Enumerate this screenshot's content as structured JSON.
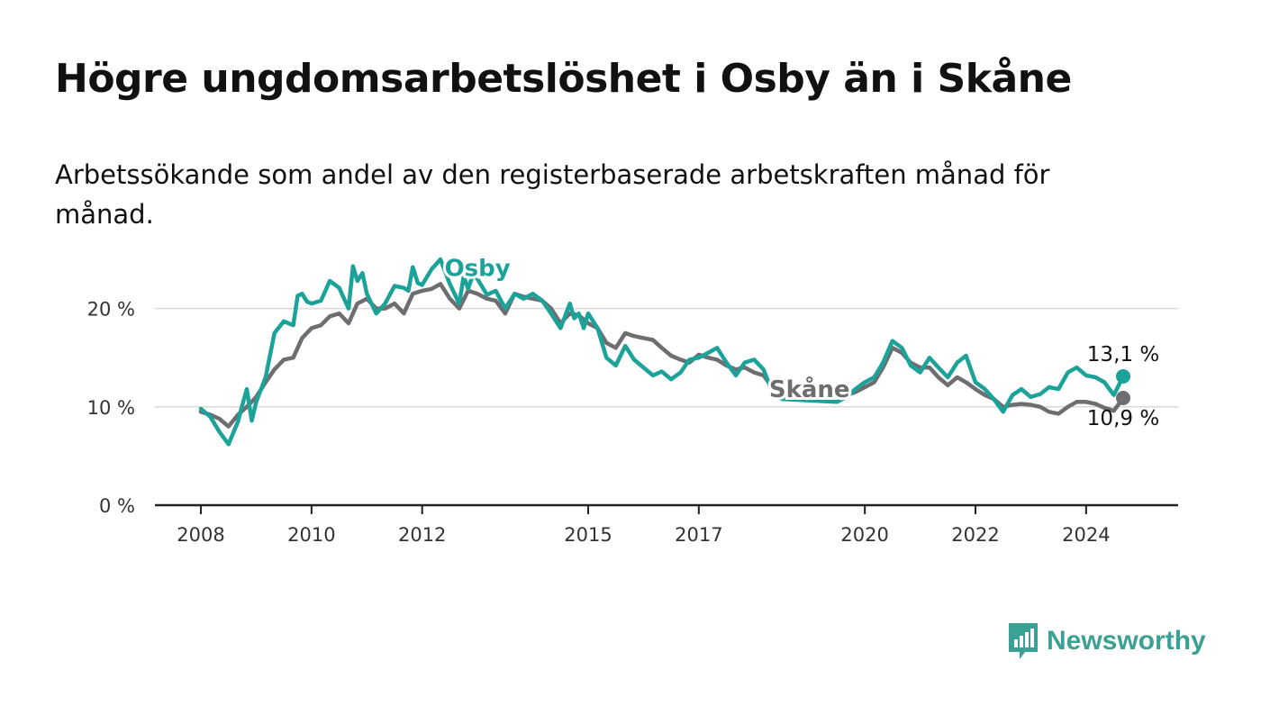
{
  "title": "Högre ungdomsarbetslöshet i Osby än i Skåne",
  "subtitle": "Arbetssökande som andel av den registerbaserade arbetskraften månad för månad.",
  "brand": {
    "name": "Newsworthy"
  },
  "colors": {
    "osby": "#1ba39a",
    "skane": "#6e6d71",
    "grid": "#d9d9d9",
    "axis": "#222222"
  },
  "chart_data": {
    "type": "line",
    "title": "Högre ungdomsarbetslöshet i Osby än i Skåne",
    "xlabel": "",
    "ylabel": "",
    "xlim": [
      2008,
      2025.75
    ],
    "ylim": [
      0,
      25
    ],
    "y_ticks": [
      0,
      10,
      20
    ],
    "y_tick_labels": [
      "0 %",
      "10 %",
      "20 %"
    ],
    "x_ticks": [
      2008,
      2010,
      2012,
      2015,
      2017,
      2020,
      2022,
      2024
    ],
    "x_tick_labels": [
      "2008",
      "2010",
      "2012",
      "2015",
      "2017",
      "2020",
      "2022",
      "2024"
    ],
    "series": [
      {
        "name": "Osby",
        "label": "Osby",
        "end_label": "13,1 %",
        "points": [
          [
            2008.0,
            9.8
          ],
          [
            2008.17,
            9.0
          ],
          [
            2008.33,
            7.5
          ],
          [
            2008.5,
            6.2
          ],
          [
            2008.67,
            8.5
          ],
          [
            2008.75,
            10.2
          ],
          [
            2008.83,
            11.8
          ],
          [
            2008.92,
            8.6
          ],
          [
            2009.0,
            10.5
          ],
          [
            2009.17,
            13.0
          ],
          [
            2009.33,
            17.5
          ],
          [
            2009.5,
            18.7
          ],
          [
            2009.67,
            18.3
          ],
          [
            2009.75,
            21.3
          ],
          [
            2009.83,
            21.5
          ],
          [
            2009.92,
            20.7
          ],
          [
            2010.0,
            20.5
          ],
          [
            2010.17,
            20.8
          ],
          [
            2010.33,
            22.8
          ],
          [
            2010.5,
            22.1
          ],
          [
            2010.67,
            20.0
          ],
          [
            2010.75,
            24.3
          ],
          [
            2010.83,
            22.8
          ],
          [
            2010.92,
            23.6
          ],
          [
            2011.0,
            21.5
          ],
          [
            2011.17,
            19.5
          ],
          [
            2011.33,
            20.5
          ],
          [
            2011.5,
            22.3
          ],
          [
            2011.67,
            22.1
          ],
          [
            2011.75,
            21.8
          ],
          [
            2011.83,
            24.2
          ],
          [
            2011.92,
            22.6
          ],
          [
            2012.0,
            22.4
          ],
          [
            2012.17,
            24.0
          ],
          [
            2012.33,
            25.0
          ],
          [
            2012.5,
            22.5
          ],
          [
            2012.67,
            20.5
          ],
          [
            2012.75,
            23.3
          ],
          [
            2012.83,
            22.0
          ],
          [
            2012.92,
            23.5
          ],
          [
            2013.0,
            23.0
          ],
          [
            2013.17,
            21.4
          ],
          [
            2013.33,
            21.8
          ],
          [
            2013.5,
            20.0
          ],
          [
            2013.67,
            21.5
          ],
          [
            2013.83,
            21.0
          ],
          [
            2014.0,
            21.5
          ],
          [
            2014.17,
            20.8
          ],
          [
            2014.33,
            19.5
          ],
          [
            2014.5,
            18.0
          ],
          [
            2014.67,
            20.5
          ],
          [
            2014.75,
            19.0
          ],
          [
            2014.83,
            19.5
          ],
          [
            2014.92,
            18.0
          ],
          [
            2015.0,
            19.5
          ],
          [
            2015.17,
            18.0
          ],
          [
            2015.33,
            15.0
          ],
          [
            2015.5,
            14.2
          ],
          [
            2015.67,
            16.2
          ],
          [
            2015.83,
            14.8
          ],
          [
            2016.0,
            14.0
          ],
          [
            2016.17,
            13.2
          ],
          [
            2016.33,
            13.6
          ],
          [
            2016.5,
            12.8
          ],
          [
            2016.67,
            13.5
          ],
          [
            2016.83,
            14.8
          ],
          [
            2017.0,
            15.0
          ],
          [
            2017.17,
            15.5
          ],
          [
            2017.33,
            16.0
          ],
          [
            2017.5,
            14.5
          ],
          [
            2017.67,
            13.2
          ],
          [
            2017.83,
            14.5
          ],
          [
            2018.0,
            14.8
          ],
          [
            2018.17,
            13.8
          ],
          [
            2018.33,
            11.5
          ],
          [
            2018.5,
            10.8
          ],
          [
            2019.5,
            10.5
          ],
          [
            2019.67,
            11.0
          ],
          [
            2019.83,
            11.8
          ],
          [
            2020.0,
            12.5
          ],
          [
            2020.17,
            13.0
          ],
          [
            2020.33,
            14.5
          ],
          [
            2020.5,
            16.7
          ],
          [
            2020.67,
            16.0
          ],
          [
            2020.83,
            14.2
          ],
          [
            2021.0,
            13.5
          ],
          [
            2021.17,
            15.0
          ],
          [
            2021.33,
            14.0
          ],
          [
            2021.5,
            13.0
          ],
          [
            2021.67,
            14.5
          ],
          [
            2021.83,
            15.2
          ],
          [
            2022.0,
            12.5
          ],
          [
            2022.17,
            11.8
          ],
          [
            2022.33,
            10.8
          ],
          [
            2022.5,
            9.5
          ],
          [
            2022.67,
            11.2
          ],
          [
            2022.83,
            11.8
          ],
          [
            2023.0,
            11.0
          ],
          [
            2023.17,
            11.3
          ],
          [
            2023.33,
            12.0
          ],
          [
            2023.5,
            11.8
          ],
          [
            2023.67,
            13.5
          ],
          [
            2023.83,
            14.0
          ],
          [
            2024.0,
            13.2
          ],
          [
            2024.17,
            13.0
          ],
          [
            2024.33,
            12.5
          ],
          [
            2024.5,
            11.2
          ],
          [
            2024.67,
            13.1
          ]
        ]
      },
      {
        "name": "Skåne",
        "label": "Skåne",
        "end_label": "10,9 %",
        "points": [
          [
            2008.0,
            9.5
          ],
          [
            2008.17,
            9.2
          ],
          [
            2008.33,
            8.8
          ],
          [
            2008.5,
            8.0
          ],
          [
            2008.67,
            9.2
          ],
          [
            2008.83,
            10.0
          ],
          [
            2009.0,
            11.0
          ],
          [
            2009.17,
            12.5
          ],
          [
            2009.33,
            13.8
          ],
          [
            2009.5,
            14.8
          ],
          [
            2009.67,
            15.0
          ],
          [
            2009.83,
            17.0
          ],
          [
            2010.0,
            18.0
          ],
          [
            2010.17,
            18.3
          ],
          [
            2010.33,
            19.2
          ],
          [
            2010.5,
            19.5
          ],
          [
            2010.67,
            18.5
          ],
          [
            2010.83,
            20.5
          ],
          [
            2011.0,
            21.0
          ],
          [
            2011.17,
            20.0
          ],
          [
            2011.33,
            20.0
          ],
          [
            2011.5,
            20.5
          ],
          [
            2011.67,
            19.5
          ],
          [
            2011.83,
            21.5
          ],
          [
            2012.0,
            21.8
          ],
          [
            2012.17,
            22.0
          ],
          [
            2012.33,
            22.5
          ],
          [
            2012.5,
            21.0
          ],
          [
            2012.67,
            20.0
          ],
          [
            2012.83,
            21.8
          ],
          [
            2013.0,
            21.5
          ],
          [
            2013.17,
            21.0
          ],
          [
            2013.33,
            20.8
          ],
          [
            2013.5,
            19.5
          ],
          [
            2013.67,
            21.5
          ],
          [
            2013.83,
            21.2
          ],
          [
            2014.0,
            21.0
          ],
          [
            2014.17,
            20.8
          ],
          [
            2014.33,
            20.0
          ],
          [
            2014.5,
            18.5
          ],
          [
            2014.67,
            19.5
          ],
          [
            2014.83,
            19.3
          ],
          [
            2015.0,
            18.5
          ],
          [
            2015.17,
            18.0
          ],
          [
            2015.33,
            16.5
          ],
          [
            2015.5,
            16.0
          ],
          [
            2015.67,
            17.5
          ],
          [
            2015.83,
            17.2
          ],
          [
            2016.0,
            17.0
          ],
          [
            2016.17,
            16.8
          ],
          [
            2016.33,
            16.0
          ],
          [
            2016.5,
            15.2
          ],
          [
            2016.67,
            14.8
          ],
          [
            2016.83,
            14.5
          ],
          [
            2017.0,
            15.3
          ],
          [
            2017.17,
            15.0
          ],
          [
            2017.33,
            14.8
          ],
          [
            2017.5,
            14.2
          ],
          [
            2017.67,
            13.8
          ],
          [
            2017.83,
            14.0
          ],
          [
            2018.0,
            13.5
          ],
          [
            2018.17,
            13.2
          ],
          [
            2018.33,
            12.0
          ],
          [
            2018.5,
            11.0
          ],
          [
            2019.67,
            11.2
          ],
          [
            2019.83,
            11.5
          ],
          [
            2020.0,
            12.0
          ],
          [
            2020.17,
            12.5
          ],
          [
            2020.33,
            14.0
          ],
          [
            2020.5,
            16.0
          ],
          [
            2020.67,
            15.5
          ],
          [
            2020.83,
            14.5
          ],
          [
            2021.0,
            14.0
          ],
          [
            2021.17,
            14.0
          ],
          [
            2021.33,
            13.0
          ],
          [
            2021.5,
            12.2
          ],
          [
            2021.67,
            13.0
          ],
          [
            2021.83,
            12.5
          ],
          [
            2022.0,
            11.8
          ],
          [
            2022.17,
            11.2
          ],
          [
            2022.33,
            10.8
          ],
          [
            2022.5,
            10.0
          ],
          [
            2022.67,
            10.2
          ],
          [
            2022.83,
            10.3
          ],
          [
            2023.0,
            10.2
          ],
          [
            2023.17,
            10.0
          ],
          [
            2023.33,
            9.5
          ],
          [
            2023.5,
            9.3
          ],
          [
            2023.67,
            10.0
          ],
          [
            2023.83,
            10.5
          ],
          [
            2024.0,
            10.5
          ],
          [
            2024.17,
            10.3
          ],
          [
            2024.33,
            9.9
          ],
          [
            2024.5,
            9.6
          ],
          [
            2024.67,
            10.9
          ]
        ]
      }
    ]
  }
}
